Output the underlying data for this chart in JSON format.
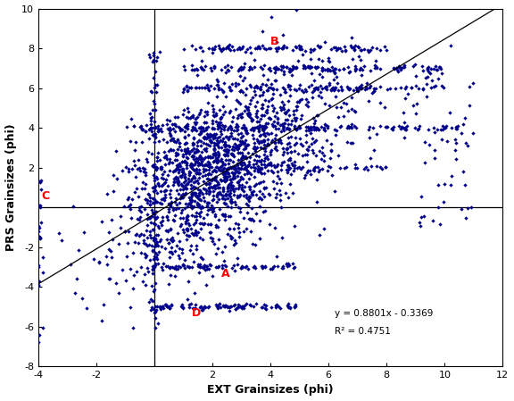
{
  "xlabel": "EXT Grainsizes (phi)",
  "ylabel": "PRS Grainsizes (phi)",
  "xlim": [
    -4,
    12
  ],
  "ylim": [
    -8,
    10
  ],
  "xticks": [
    -4,
    -2,
    0,
    2,
    4,
    6,
    8,
    10,
    12
  ],
  "yticks": [
    -8,
    -6,
    -4,
    -2,
    0,
    2,
    4,
    6,
    8,
    10
  ],
  "dot_color": "#00008B",
  "regression_slope": 0.8801,
  "regression_intercept": -0.3369,
  "label_A": "A",
  "label_B": "B",
  "label_C": "C",
  "label_D": "D",
  "label_color": "red",
  "eq_text": "y = 0.8801x - 0.3369",
  "r2_text": "R² = 0.4751",
  "seed": 42
}
